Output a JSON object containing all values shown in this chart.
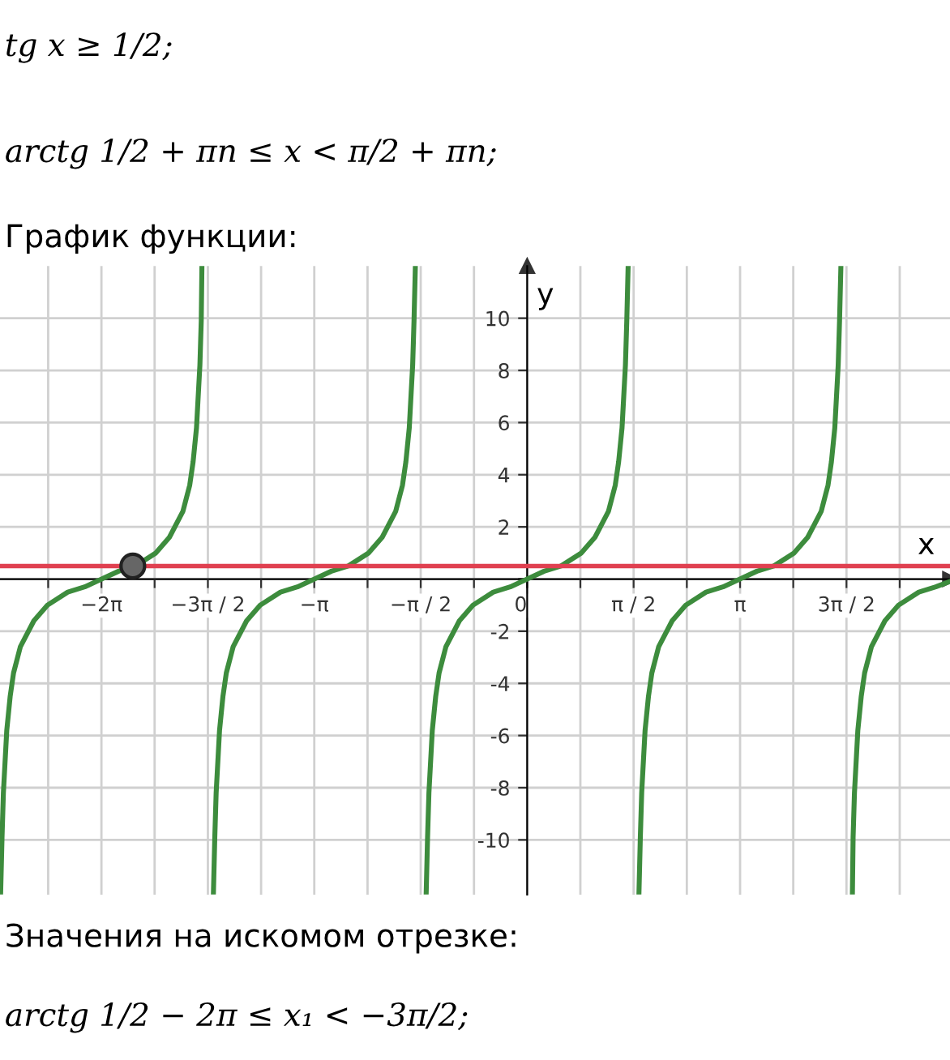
{
  "chart_data": {
    "type": "line",
    "xlabel": "x",
    "ylabel": "y",
    "annotations": [
      "tg x ≥ 1/2;",
      "arctg 1/2 + πn ≤ x < π/2 + πn;",
      "График функции:",
      "Значения на искомом отрезке:",
      "arctg 1/2 − 2π ≤ x₁ < −3π/2;"
    ],
    "xlim": [
      -7.78,
      6.24
    ],
    "ylim": [
      -12.1,
      12.0
    ],
    "xticks": [
      {
        "value": -7.069,
        "label": null
      },
      {
        "value": -6.283,
        "label": "−2π"
      },
      {
        "value": -5.498,
        "label": null
      },
      {
        "value": -4.712,
        "label": "−3π / 2"
      },
      {
        "value": -3.927,
        "label": null
      },
      {
        "value": -3.142,
        "label": "−π"
      },
      {
        "value": -2.356,
        "label": null
      },
      {
        "value": -1.571,
        "label": "−π / 2"
      },
      {
        "value": -0.785,
        "label": null
      },
      {
        "value": 0,
        "label": "0"
      },
      {
        "value": 0.785,
        "label": null
      },
      {
        "value": 1.571,
        "label": "π / 2"
      },
      {
        "value": 2.356,
        "label": null
      },
      {
        "value": 3.142,
        "label": "π"
      },
      {
        "value": 3.927,
        "label": null
      },
      {
        "value": 4.712,
        "label": "3π / 2"
      },
      {
        "value": 5.498,
        "label": null
      }
    ],
    "yticks": [
      -10,
      -8,
      -6,
      -4,
      -2,
      {
        "value": 0,
        "label": null
      },
      2,
      4,
      6,
      8,
      10
    ],
    "grid": true,
    "marker": "none",
    "line_style": "solid",
    "ref_lines": [
      {
        "axis": "y",
        "value": 0.5,
        "label": null,
        "color": "#e04050"
      }
    ],
    "series": [
      {
        "color": "#3d8c3d",
        "x": [
          -7.77,
          -7.75,
          -7.73,
          -7.68,
          -7.63,
          -7.58,
          -7.48,
          -7.28,
          -7.08,
          -6.78,
          -6.53,
          -6.28,
          -6.03,
          -5.78,
          -5.48,
          -5.28,
          -5.08,
          -4.98,
          -4.93,
          -4.88,
          -4.83,
          -4.81,
          -4.8
        ],
        "values": [
          -12,
          -9.9,
          -8.2,
          -5.8,
          -4.5,
          -3.6,
          -2.6,
          -1.6,
          -1.0,
          -0.5,
          -0.3,
          0,
          0.3,
          0.5,
          1.0,
          1.6,
          2.6,
          3.6,
          4.5,
          5.8,
          8.2,
          9.9,
          12
        ]
      },
      {
        "color": "#3d8c3d",
        "x": [
          -4.63,
          -4.61,
          -4.59,
          -4.54,
          -4.49,
          -4.44,
          -4.34,
          -4.14,
          -3.94,
          -3.64,
          -3.39,
          -3.14,
          -2.89,
          -2.64,
          -2.34,
          -2.14,
          -1.94,
          -1.84,
          -1.79,
          -1.74,
          -1.69,
          -1.67,
          -1.65
        ],
        "values": [
          -12,
          -9.9,
          -8.2,
          -5.8,
          -4.5,
          -3.6,
          -2.6,
          -1.6,
          -1.0,
          -0.5,
          -0.3,
          0,
          0.3,
          0.5,
          1.0,
          1.6,
          2.6,
          3.6,
          4.5,
          5.8,
          8.2,
          9.9,
          12
        ]
      },
      {
        "color": "#3d8c3d",
        "x": [
          -1.49,
          -1.47,
          -1.45,
          -1.4,
          -1.35,
          -1.3,
          -1.2,
          -1.0,
          -0.8,
          -0.5,
          -0.25,
          0,
          0.25,
          0.5,
          0.8,
          1.0,
          1.2,
          1.3,
          1.35,
          1.4,
          1.45,
          1.47,
          1.49
        ],
        "values": [
          -12,
          -9.9,
          -8.2,
          -5.8,
          -4.5,
          -3.6,
          -2.6,
          -1.6,
          -1.0,
          -0.5,
          -0.3,
          0,
          0.3,
          0.5,
          1.0,
          1.6,
          2.6,
          3.6,
          4.5,
          5.8,
          8.2,
          9.9,
          12
        ]
      },
      {
        "color": "#3d8c3d",
        "x": [
          1.65,
          1.67,
          1.69,
          1.74,
          1.79,
          1.84,
          1.94,
          2.14,
          2.34,
          2.64,
          2.89,
          3.14,
          3.39,
          3.64,
          3.94,
          4.14,
          4.34,
          4.44,
          4.49,
          4.54,
          4.59,
          4.61,
          4.63
        ],
        "values": [
          -12,
          -9.9,
          -8.2,
          -5.8,
          -4.5,
          -3.6,
          -2.6,
          -1.6,
          -1.0,
          -0.5,
          -0.3,
          0,
          0.3,
          0.5,
          1.0,
          1.6,
          2.6,
          3.6,
          4.5,
          5.8,
          8.2,
          9.9,
          12
        ]
      },
      {
        "color": "#3d8c3d",
        "x": [
          4.8,
          4.81,
          4.83,
          4.88,
          4.93,
          4.98,
          5.08,
          5.28,
          5.48,
          5.78,
          6.03,
          6.23
        ],
        "values": [
          -12,
          -9.9,
          -8.2,
          -5.8,
          -4.5,
          -3.6,
          -2.6,
          -1.6,
          -1.0,
          -0.5,
          -0.3,
          -0.1
        ]
      },
      {
        "type": "scatter",
        "color": "#666666",
        "marker": "circle",
        "x": [
          -5.82
        ],
        "values": [
          0.5
        ]
      }
    ]
  }
}
